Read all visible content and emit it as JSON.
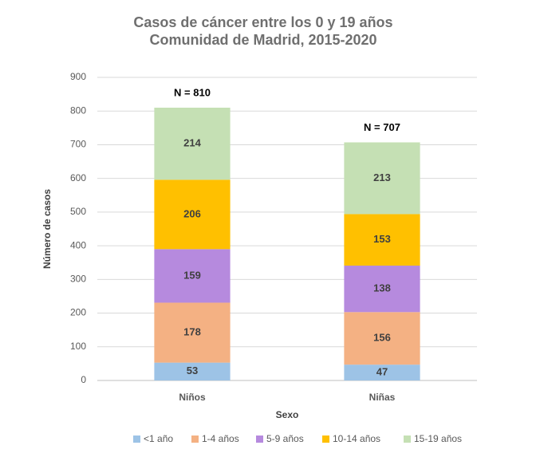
{
  "chart_data": {
    "type": "stacked_bar",
    "title": "Casos de cáncer entre los 0 y 19 años",
    "subtitle": "Comunidad de Madrid, 2015-2020",
    "x_label": "Sexo",
    "y_label": "Número de casos",
    "categories": [
      "Niños",
      "Niñas"
    ],
    "series": [
      {
        "name": "<1 año",
        "color": "#9dc3e6",
        "values": [
          53,
          47
        ]
      },
      {
        "name": "1-4 años",
        "color": "#f4b183",
        "values": [
          178,
          156
        ]
      },
      {
        "name": "5-9 años",
        "color": "#b68ade",
        "values": [
          159,
          138
        ]
      },
      {
        "name": "10-14 años",
        "color": "#ffc000",
        "values": [
          206,
          153
        ]
      },
      {
        "name": "15-19 años",
        "color": "#c5e0b4",
        "values": [
          214,
          213
        ]
      }
    ],
    "totals": [
      810,
      707
    ],
    "total_labels": [
      "N = 810",
      "N = 707"
    ],
    "ylim": [
      0,
      900
    ],
    "yticks": [
      0,
      100,
      200,
      300,
      400,
      500,
      600,
      700,
      800,
      900
    ],
    "grid": true,
    "legend": "bottom"
  }
}
